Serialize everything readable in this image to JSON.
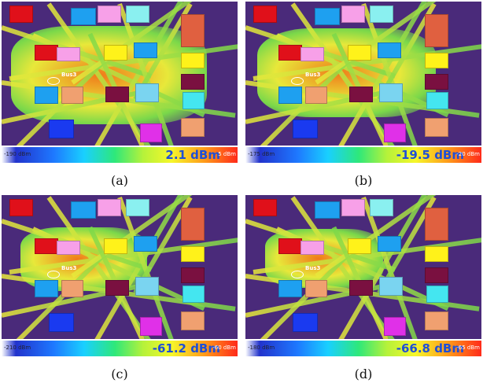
{
  "panels": [
    {
      "caption": "(a)",
      "power_value": "2.1 dBm",
      "bus_label": "Bus3",
      "scale_min": "-190 dBm",
      "scale_max": "5 dBm",
      "coverage": 0.95
    },
    {
      "caption": "(b)",
      "power_value": "-19.5 dBm",
      "bus_label": "Bus3",
      "scale_min": "-175 dBm",
      "scale_max": "-20 dBm",
      "coverage": 0.85
    },
    {
      "caption": "(c)",
      "power_value": "-61.2 dBm",
      "bus_label": "Bus3",
      "scale_min": "-210 dBm",
      "scale_max": "-60 dBm",
      "coverage": 0.55
    },
    {
      "caption": "(d)",
      "power_value": "-66.8 dBm",
      "bus_label": "Bus3",
      "scale_min": "-180 dBm",
      "scale_max": "-65 dBm",
      "coverage": 0.5
    }
  ],
  "colors": {
    "background": "#4a2a7a",
    "heat_high": "#f07a1a",
    "heat_mid": "#e8e83a",
    "heat_low": "#7ad84a",
    "value_text": "#1f4fd6"
  }
}
